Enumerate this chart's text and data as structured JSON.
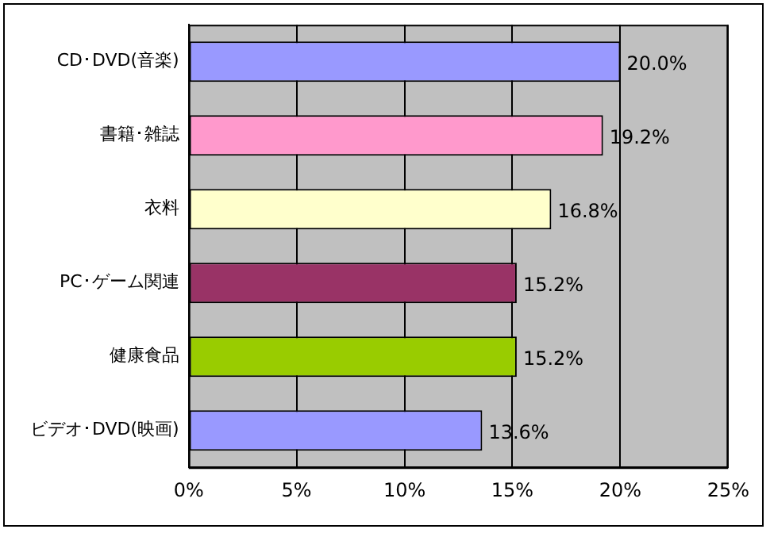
{
  "chart_data": {
    "type": "bar",
    "orientation": "horizontal",
    "categories": [
      "CD･DVD(音楽)",
      "書籍･雑誌",
      "衣料",
      "PC･ゲーム関連",
      "健康食品",
      "ビデオ･DVD(映画)"
    ],
    "values": [
      20.0,
      19.2,
      16.8,
      15.2,
      15.2,
      13.6
    ],
    "colors": [
      "#9999ff",
      "#ff99cc",
      "#ffffcc",
      "#993366",
      "#99cc00",
      "#9999ff"
    ],
    "value_labels": [
      "20.0%",
      "19.2%",
      "16.8%",
      "15.2%",
      "15.2%",
      "13.6%"
    ],
    "xlim": [
      0,
      25
    ],
    "xticks": [
      {
        "value": 0,
        "label": "0%"
      },
      {
        "value": 5,
        "label": "5%"
      },
      {
        "value": 10,
        "label": "10%"
      },
      {
        "value": 15,
        "label": "15%"
      },
      {
        "value": 20,
        "label": "20%"
      },
      {
        "value": 25,
        "label": "25%"
      }
    ],
    "grid": "x",
    "legend": false
  }
}
